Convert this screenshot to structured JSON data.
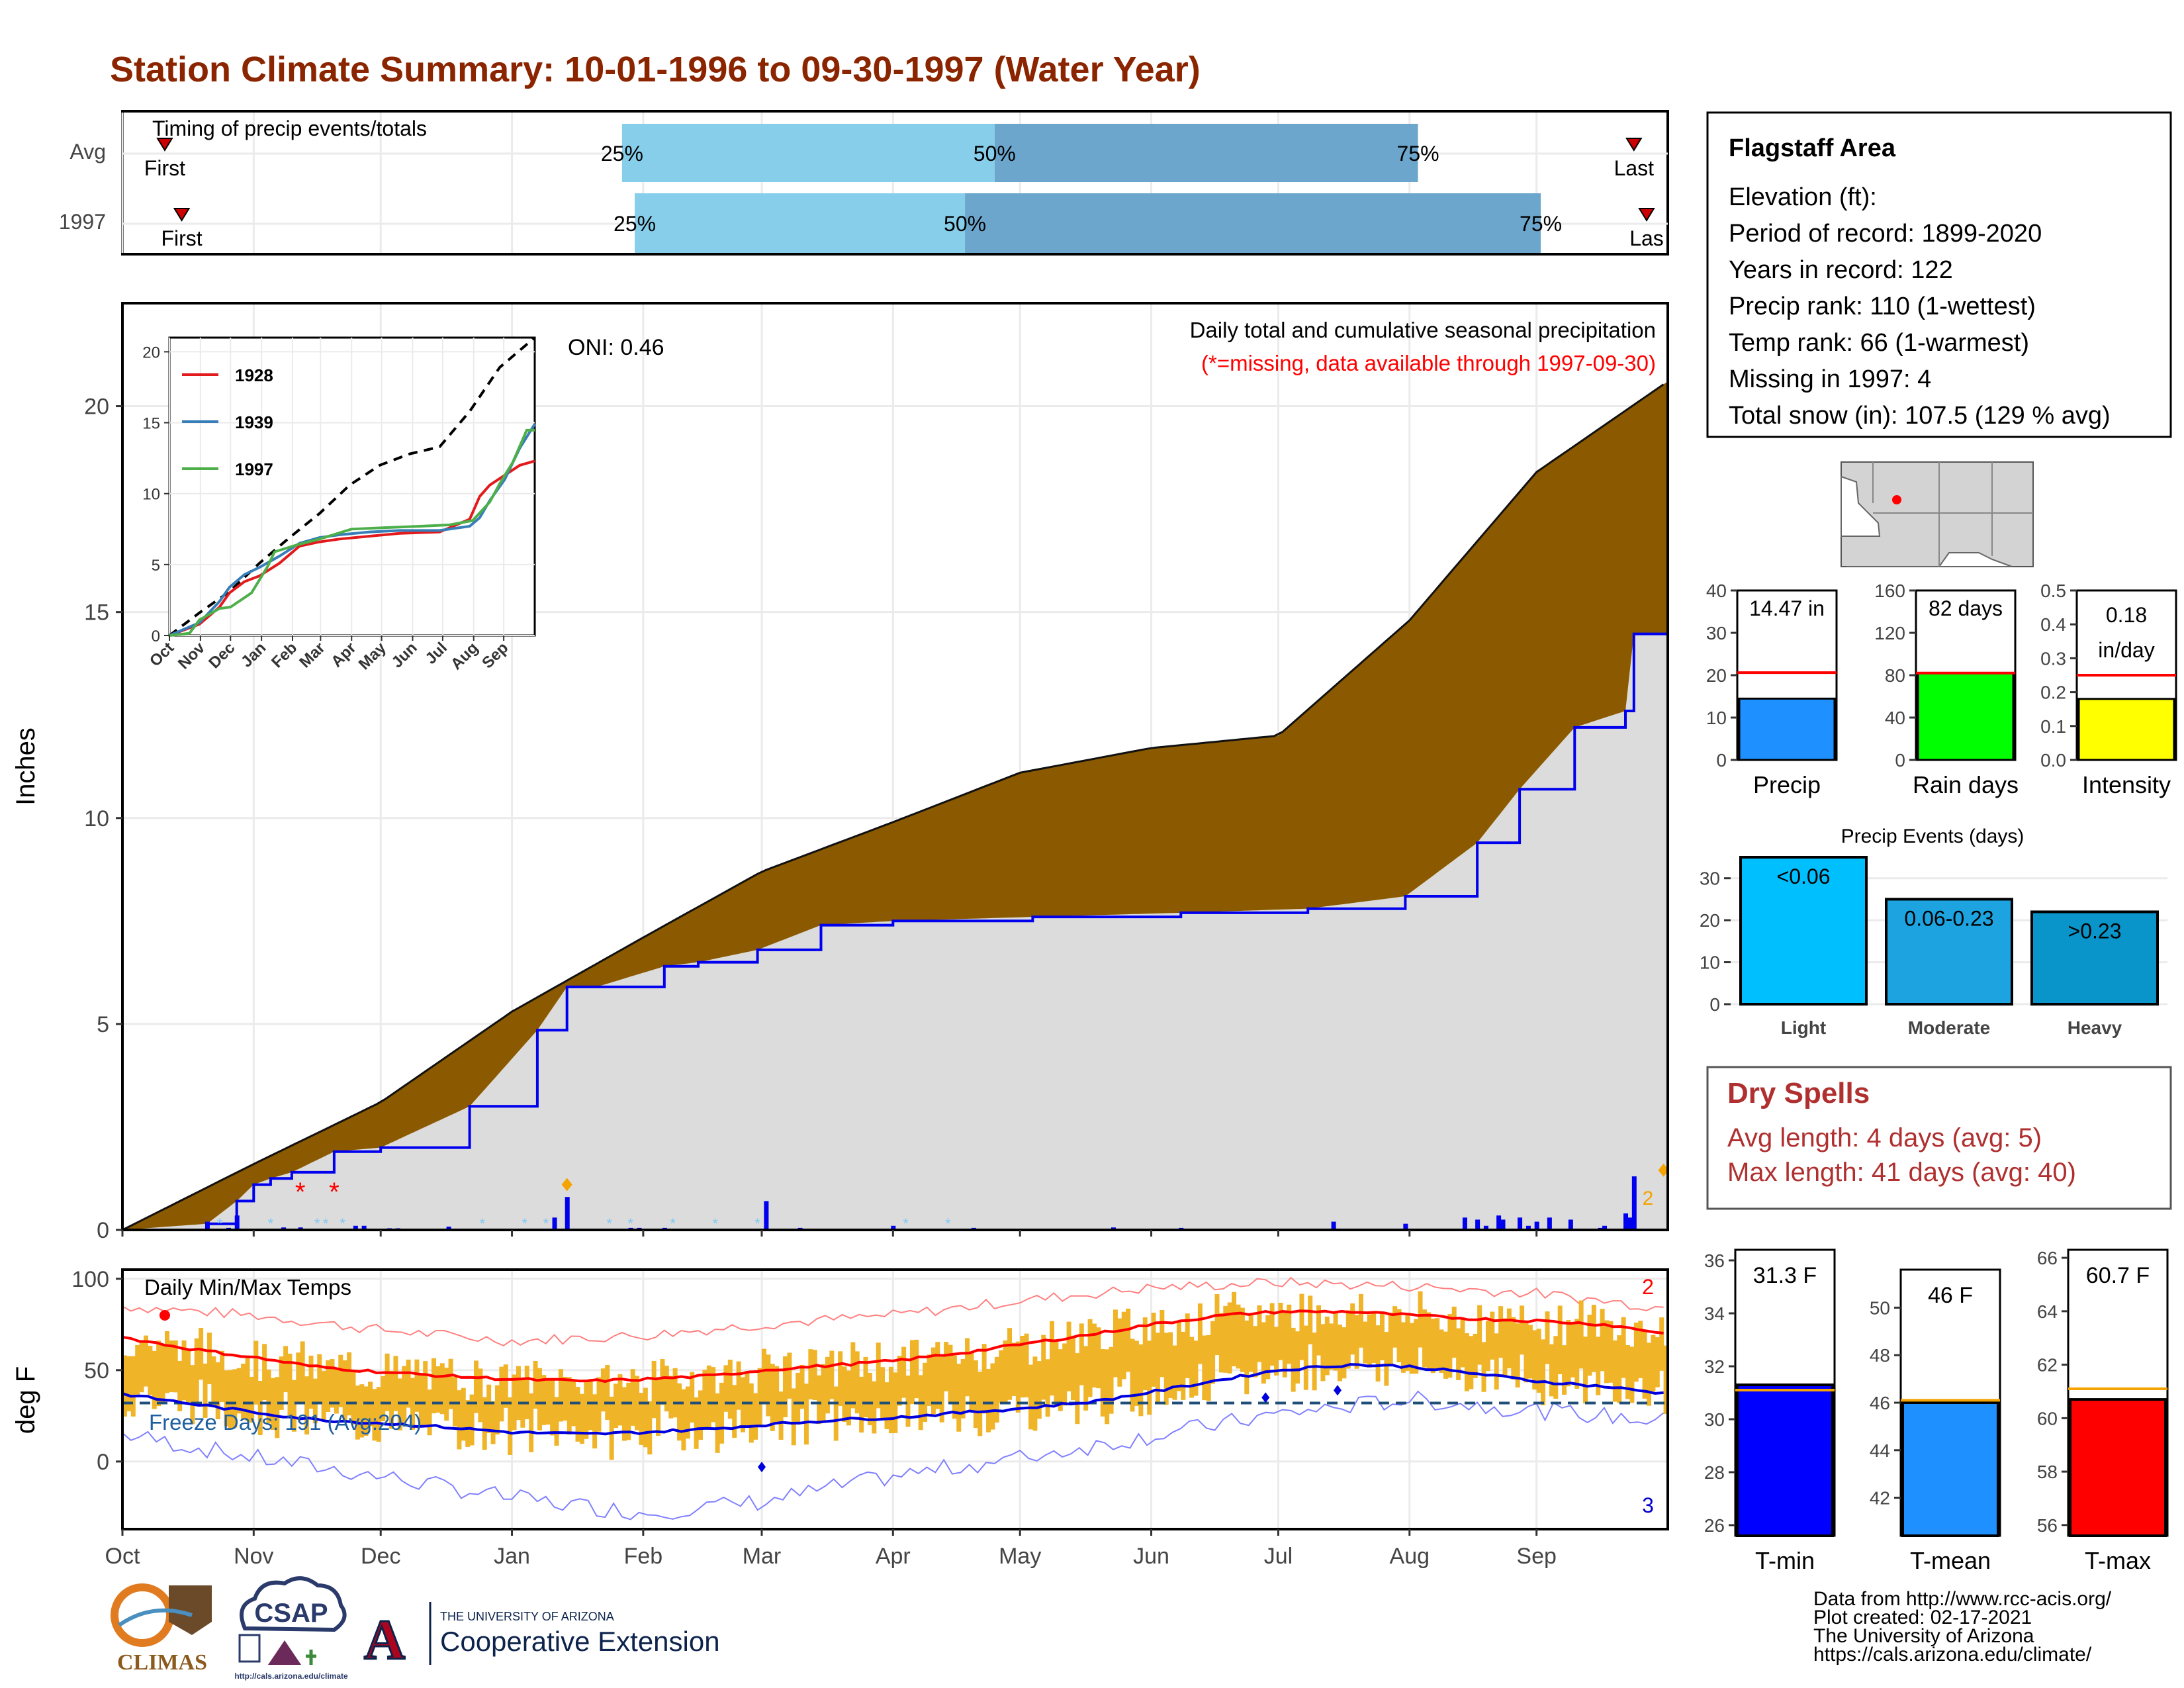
{
  "title": "Station Climate Summary: 10-01-1996 to 09-30-1997 (Water Year)",
  "timing": {
    "label": "Timing of precip events/totals",
    "rows": [
      {
        "name": "Avg",
        "first_label": "First",
        "last_label": "Last",
        "p25_label": "25%",
        "p50_label": "50%",
        "p75_label": "75%"
      },
      {
        "name": "1997",
        "first_label": "First",
        "last_label": "Las",
        "p25_label": "25%",
        "p50_label": "50%",
        "p75_label": "75%"
      }
    ],
    "chart_data": {
      "type": "bar",
      "x_unit": "day of water year",
      "rows": [
        {
          "name": "Avg",
          "first": 10,
          "p25": 118,
          "p50": 206,
          "p75": 306,
          "last": 357
        },
        {
          "name": "1997",
          "first": 14,
          "p25": 121,
          "p50": 199,
          "p75": 335,
          "last": 360
        }
      ]
    }
  },
  "main": {
    "ylabel": "Inches",
    "oni": "ONI: 0.46",
    "caption": "Daily total and cumulative seasonal precipitation",
    "caption_missing": "(*=missing, data available through 1997-09-30)",
    "count_label": "2",
    "chart_data": {
      "type": "area",
      "ylim": [
        0,
        22.5
      ],
      "yticks": [
        0,
        5,
        10,
        15,
        20
      ],
      "xticks": [
        "Oct",
        "Nov",
        "Dec",
        "Jan",
        "Feb",
        "Mar",
        "Apr",
        "May",
        "Jun",
        "Jul",
        "Aug",
        "Sep"
      ],
      "series": [
        {
          "name": "cumulative average",
          "x": [
            0,
            31,
            61,
            92,
            123,
            151,
            182,
            212,
            243,
            273,
            304,
            334,
            365
          ],
          "values": [
            0,
            1.6,
            3.1,
            5.3,
            7.1,
            8.7,
            9.9,
            11.1,
            11.7,
            12.0,
            14.8,
            18.4,
            20.6
          ]
        },
        {
          "name": "cumulative 1997",
          "x": [
            0,
            20,
            27,
            31,
            35,
            40,
            50,
            61,
            82,
            98,
            105,
            112,
            128,
            136,
            150,
            165,
            182,
            215,
            250,
            280,
            303,
            320,
            330,
            343,
            355,
            357,
            364
          ],
          "values": [
            0,
            0.15,
            0.7,
            1.1,
            1.25,
            1.4,
            1.9,
            2.0,
            3.0,
            4.85,
            5.9,
            5.9,
            6.4,
            6.5,
            6.8,
            7.4,
            7.5,
            7.6,
            7.7,
            7.8,
            8.1,
            9.4,
            10.7,
            12.2,
            12.6,
            14.47,
            14.47
          ]
        }
      ],
      "daily_x": [
        20,
        25,
        27,
        38,
        42,
        55,
        57,
        63,
        65,
        77,
        102,
        105,
        120,
        122,
        128,
        133,
        152,
        160,
        182,
        201,
        234,
        250,
        286,
        303,
        317,
        320,
        322,
        325,
        326,
        330,
        332,
        334,
        337,
        342,
        349,
        350,
        355,
        356,
        357
      ],
      "daily_values": [
        0.2,
        0.05,
        0.35,
        0.06,
        0.06,
        0.1,
        0.1,
        0.04,
        0.04,
        0.08,
        0.3,
        0.8,
        0.05,
        0.05,
        0.05,
        0.03,
        0.7,
        0.05,
        0.1,
        0.05,
        0.06,
        0.05,
        0.2,
        0.15,
        0.3,
        0.25,
        0.1,
        0.35,
        0.25,
        0.3,
        0.1,
        0.2,
        0.3,
        0.25,
        0.05,
        0.1,
        0.4,
        0.3,
        1.3
      ],
      "missing_x": [
        42,
        50
      ]
    }
  },
  "inset": {
    "chart_data": {
      "type": "line",
      "ylim": [
        0,
        21
      ],
      "yticks": [
        0,
        5,
        10,
        15,
        20
      ],
      "xticks": [
        "Oct",
        "Nov",
        "Dec",
        "Jan",
        "Feb",
        "Mar",
        "Apr",
        "May",
        "Jun",
        "Jul",
        "Aug",
        "Sep"
      ],
      "series": [
        {
          "name": "avg",
          "x": [
            0,
            30,
            60,
            90,
            120,
            150,
            180,
            210,
            240,
            270,
            300,
            330,
            365
          ],
          "values": [
            0,
            1.6,
            3.1,
            5.1,
            6.9,
            8.6,
            10.6,
            12.0,
            12.8,
            13.3,
            15.8,
            18.9,
            21.0
          ]
        },
        {
          "name": "1928",
          "x": [
            0,
            30,
            50,
            60,
            75,
            90,
            110,
            130,
            150,
            170,
            200,
            230,
            270,
            300,
            310,
            320,
            335,
            350,
            365
          ],
          "values": [
            0,
            0.8,
            2.0,
            3.0,
            3.8,
            4.2,
            5.1,
            6.3,
            6.6,
            6.8,
            7.0,
            7.2,
            7.3,
            8.2,
            9.8,
            10.6,
            11.3,
            12.0,
            12.3
          ]
        },
        {
          "name": "1939",
          "x": [
            0,
            30,
            50,
            60,
            75,
            90,
            110,
            130,
            150,
            170,
            200,
            230,
            270,
            300,
            310,
            320,
            335,
            350,
            365
          ],
          "values": [
            0,
            0.9,
            2.4,
            3.4,
            4.3,
            4.8,
            5.6,
            6.5,
            6.9,
            7.1,
            7.3,
            7.4,
            7.4,
            7.7,
            8.3,
            9.5,
            11.0,
            13.2,
            14.9
          ]
        },
        {
          "name": "1997",
          "x": [
            0,
            20,
            30,
            50,
            61,
            82,
            98,
            105,
            128,
            150,
            182,
            215,
            250,
            280,
            303,
            320,
            330,
            343,
            357,
            365
          ],
          "values": [
            0,
            0.15,
            1.1,
            1.9,
            2.0,
            3.0,
            4.85,
            5.9,
            6.4,
            6.8,
            7.5,
            7.6,
            7.7,
            7.8,
            8.1,
            9.4,
            10.7,
            12.2,
            14.47,
            14.47
          ]
        }
      ]
    }
  },
  "temps": {
    "ylabel": "deg F",
    "title": "Daily Min/Max Temps",
    "freeze_label": "Freeze Days: 191 (Avg:204)",
    "count_high": "2",
    "count_low": "3",
    "chart_data": {
      "type": "line",
      "ylim": [
        -37,
        105
      ],
      "yticks": [
        0,
        50,
        100
      ],
      "xticks": [
        "Oct",
        "Nov",
        "Dec",
        "Jan",
        "Feb",
        "Mar",
        "Apr",
        "May",
        "Jun",
        "Jul",
        "Aug",
        "Sep"
      ],
      "freeze_line": 32,
      "avg_max": {
        "x": [
          0,
          15,
          31,
          45,
          61,
          75,
          92,
          110,
          123,
          140,
          151,
          170,
          182,
          200,
          212,
          230,
          243,
          260,
          273,
          290,
          304,
          320,
          334,
          350,
          365
        ],
        "values": [
          68,
          62,
          57,
          52,
          49,
          47,
          45,
          44,
          45,
          47,
          50,
          53,
          55,
          60,
          64,
          70,
          75,
          80,
          82,
          82,
          80,
          78,
          77,
          75,
          70
        ]
      },
      "avg_min": {
        "x": [
          0,
          15,
          31,
          45,
          61,
          75,
          92,
          110,
          123,
          140,
          151,
          170,
          182,
          200,
          212,
          230,
          243,
          260,
          273,
          290,
          304,
          320,
          334,
          350,
          365
        ],
        "values": [
          37,
          32,
          27,
          23,
          21,
          19,
          16,
          15,
          16,
          18,
          20,
          23,
          24,
          27,
          29,
          33,
          38,
          45,
          50,
          53,
          52,
          48,
          44,
          41,
          37
        ]
      },
      "record_max": {
        "x": [
          0,
          31,
          61,
          92,
          123,
          151,
          182,
          212,
          243,
          273,
          304,
          334,
          365
        ],
        "values": [
          85,
          80,
          72,
          66,
          69,
          75,
          80,
          88,
          95,
          98,
          96,
          92,
          84
        ]
      },
      "record_min": {
        "x": [
          0,
          31,
          61,
          92,
          123,
          151,
          182,
          212,
          243,
          273,
          304,
          334,
          365
        ],
        "values": [
          15,
          2,
          -8,
          -20,
          -28,
          -22,
          -8,
          2,
          14,
          26,
          34,
          28,
          22
        ]
      }
    }
  },
  "info": {
    "station": "Flagstaff Area",
    "lines": [
      "Elevation (ft):",
      "Period of record: 1899-2020",
      "Years in record: 122",
      "Precip rank: 110 (1-wettest)",
      "Temp rank: 66 (1-warmest)",
      "Missing in 1997: 4",
      "Total snow (in): 107.5 (129 % avg)"
    ]
  },
  "precip_bars": [
    {
      "label": "Precip",
      "value_text": "14.47 in",
      "value": 14.47,
      "avg": 20.6,
      "ylim": [
        0,
        40
      ],
      "yticks": [
        0,
        10,
        20,
        30,
        40
      ],
      "color": "#1e90ff"
    },
    {
      "label": "Rain days",
      "value_text": "82 days",
      "value": 82,
      "avg": 82,
      "ylim": [
        0,
        160
      ],
      "yticks": [
        0,
        40,
        80,
        120,
        160
      ],
      "color": "#00ff00"
    },
    {
      "label": "Intensity",
      "value_text_1": "0.18",
      "value_text_2": "in/day",
      "value": 0.18,
      "avg": 0.25,
      "ylim": [
        0,
        0.5
      ],
      "yticks": [
        0.0,
        0.1,
        0.2,
        0.3,
        0.4,
        0.5
      ],
      "color": "#ffff00"
    }
  ],
  "events": {
    "title": "Precip Events (days)",
    "chart_data": {
      "type": "bar",
      "categories": [
        "Light",
        "Moderate",
        "Heavy"
      ],
      "bar_labels": [
        "<0.06",
        "0.06-0.23",
        ">0.23"
      ],
      "values": [
        35,
        25,
        22
      ],
      "ylim": [
        0,
        35
      ],
      "yticks": [
        0,
        10,
        20,
        30
      ],
      "colors": [
        "#00bfff",
        "#1ca3e0",
        "#0995c9"
      ]
    }
  },
  "dry_spells": {
    "title": "Dry Spells",
    "avg_line": "Avg length: 4 days (avg: 5)",
    "max_line": "Max length: 41 days (avg: 40)"
  },
  "temp_bars": [
    {
      "label": "T-min",
      "value_text": "31.3 F",
      "value": 31.3,
      "avg": 31.1,
      "ylim": [
        25.6,
        36.4
      ],
      "yticks": [
        26,
        28,
        30,
        32,
        34,
        36
      ],
      "color": "#0000ff"
    },
    {
      "label": "T-mean",
      "value_text": "46 F",
      "value": 46.0,
      "avg": 46.1,
      "ylim": [
        40.4,
        51.6
      ],
      "yticks": [
        42,
        44,
        46,
        48,
        50
      ],
      "color": "#1e90ff"
    },
    {
      "label": "T-max",
      "value_text": "60.7 F",
      "value": 60.7,
      "avg": 61.1,
      "ylim": [
        55.6,
        66.3
      ],
      "yticks": [
        56,
        58,
        60,
        62,
        64,
        66
      ],
      "color": "#ff0000"
    }
  ],
  "credits": [
    "Data from http://www.rcc-acis.org/",
    "Plot created: 02-17-2021",
    "The University of Arizona",
    "https://cals.arizona.edu/climate/"
  ],
  "logos": {
    "climas": "CLIMAS",
    "csap": "CSAP",
    "csap_url": "http://cals.arizona.edu/climate",
    "ua_small": "THE UNIVERSITY OF ARIZONA",
    "ua_big": "Cooperative Extension",
    "ua_letter": "A"
  }
}
